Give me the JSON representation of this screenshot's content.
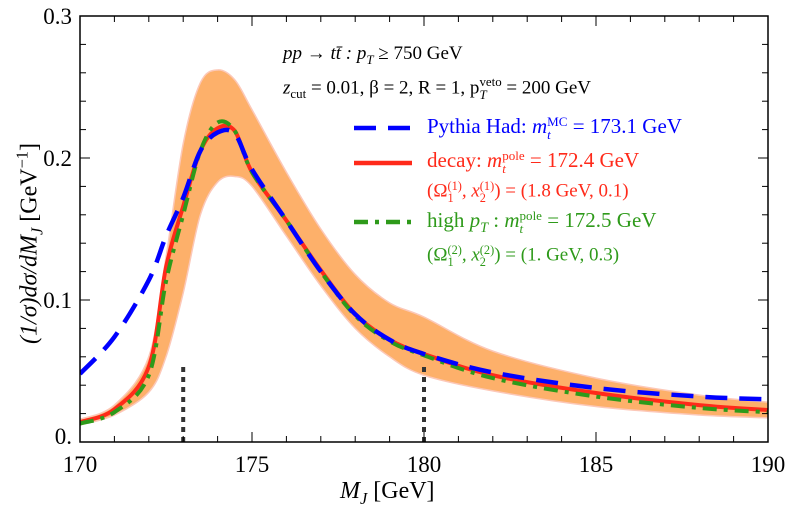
{
  "chart_data": {
    "type": "line",
    "xlabel": {
      "main": "M",
      "sub": "J",
      "unit": " [GeV]"
    },
    "ylabel": {
      "main": "(1/σ)dσ/dM",
      "sub": "J",
      "unit": " [GeV",
      "unit_sup": "−1",
      "unit_end": "]"
    },
    "xlim": [
      170,
      190
    ],
    "ylim": [
      0,
      0.3
    ],
    "xticks": [
      "170",
      "175",
      "180",
      "185",
      "190"
    ],
    "yticks": [
      "0.",
      "0.1",
      "0.2",
      "0.3"
    ],
    "grid": false,
    "annotations": {
      "line1": {
        "a": "pp → tt̄ :  p",
        "a_sub": "T",
        "b": " ≥ 750 GeV"
      },
      "line2": {
        "a": "z",
        "a_sub": "cut",
        "b": " = 0.01,  β = 2,  R = 1,  p",
        "b_sup": "veto",
        "b_sub": "T",
        "c": " = 200 GeV"
      }
    },
    "vertical_markers": [
      173,
      180
    ],
    "x": [
      170,
      171,
      172,
      172.5,
      173,
      173.5,
      174,
      174.5,
      175,
      176,
      177,
      178,
      179,
      180,
      182,
      185,
      188,
      190
    ],
    "band": {
      "color": "#fdb06a",
      "upper": [
        0.016,
        0.026,
        0.06,
        0.13,
        0.21,
        0.253,
        0.262,
        0.255,
        0.234,
        0.19,
        0.15,
        0.118,
        0.098,
        0.088,
        0.064,
        0.045,
        0.033,
        0.028
      ],
      "lower": [
        0.012,
        0.019,
        0.035,
        0.06,
        0.105,
        0.16,
        0.183,
        0.187,
        0.18,
        0.145,
        0.11,
        0.08,
        0.06,
        0.047,
        0.036,
        0.025,
        0.019,
        0.017
      ]
    },
    "series": [
      {
        "name": "Pythia Had",
        "color": "#0000ff",
        "style": "dashed",
        "label": {
          "a": "Pythia Had: ",
          "m": "m",
          "sub": "t",
          "sup": "MC",
          "b": " = 173.1 GeV"
        },
        "values": [
          0.048,
          0.074,
          0.114,
          0.145,
          0.172,
          0.205,
          0.218,
          0.217,
          0.192,
          0.156,
          0.12,
          0.09,
          0.072,
          0.062,
          0.049,
          0.038,
          0.032,
          0.03
        ]
      },
      {
        "name": "decay",
        "color": "#ff2a1a",
        "style": "solid",
        "label": {
          "a": "decay:  ",
          "m": "m",
          "sub": "t",
          "sup": "pole",
          "b": " = 172.4 GeV",
          "params": "(Ω",
          "p_sub1": "1",
          "p_sup1": "(1)",
          "p_mid": ",  x",
          "p_sub2": "2",
          "p_sup2": "(1)",
          "p_end": ") = (1.8 GeV,  0.1)"
        },
        "values": [
          0.014,
          0.023,
          0.053,
          0.123,
          0.166,
          0.205,
          0.221,
          0.219,
          0.19,
          0.156,
          0.121,
          0.09,
          0.072,
          0.062,
          0.047,
          0.0345,
          0.026,
          0.0225
        ]
      },
      {
        "name": "high pT",
        "color": "#2e9a1a",
        "style": "dashdot",
        "label": {
          "a": "high ",
          "pt": "p",
          "pt_sub": "T",
          "a2": " :  ",
          "m": "m",
          "sub": "t",
          "sup": "pole",
          "b": " = 172.5 GeV",
          "params": "(Ω",
          "p_sub1": "1",
          "p_sup1": "(2)",
          "p_mid": ",  x",
          "p_sub2": "2",
          "p_sup2": "(2)",
          "p_end": ") = (1. GeV,  0.3)"
        },
        "values": [
          0.013,
          0.021,
          0.047,
          0.113,
          0.16,
          0.205,
          0.225,
          0.219,
          0.19,
          0.156,
          0.12,
          0.089,
          0.071,
          0.061,
          0.045,
          0.032,
          0.024,
          0.021
        ]
      }
    ]
  }
}
